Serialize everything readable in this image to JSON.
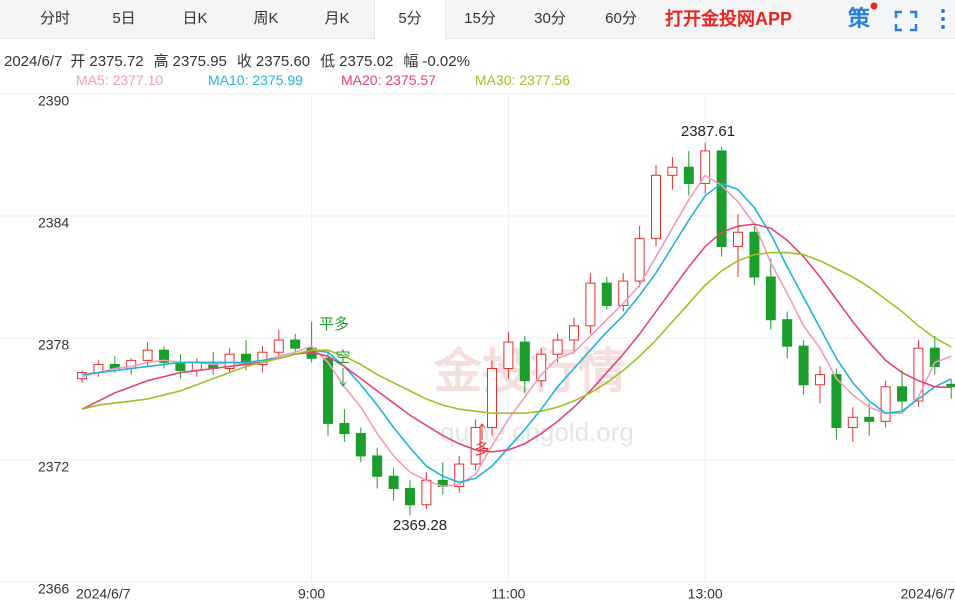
{
  "toolbar": {
    "tabs": [
      "分时",
      "5日",
      "日K",
      "周K",
      "月K",
      "5分",
      "15分",
      "30分",
      "60分"
    ],
    "active": 5,
    "app_link": "打开金投网APP",
    "strategy": "策"
  },
  "info": {
    "date": "2024/6/7",
    "items": [
      {
        "label": "开",
        "value": "2375.72"
      },
      {
        "label": "高",
        "value": "2375.95"
      },
      {
        "label": "收",
        "value": "2375.60"
      },
      {
        "label": "低",
        "value": "2375.02"
      },
      {
        "label": "幅",
        "value": "-0.02%"
      }
    ]
  },
  "chart_data": {
    "type": "candlestick",
    "categories": [
      "2024/6/7",
      null,
      null,
      null,
      null,
      null,
      null,
      null,
      null,
      null,
      null,
      null,
      null,
      null,
      "9:00",
      null,
      null,
      null,
      null,
      null,
      null,
      null,
      null,
      null,
      null,
      null,
      "11:00",
      null,
      null,
      null,
      null,
      null,
      null,
      null,
      null,
      null,
      null,
      null,
      "13:00",
      null,
      null,
      null,
      null,
      null,
      null,
      null,
      null,
      null,
      null,
      null,
      null,
      null,
      null,
      "2024/6/7"
    ],
    "open": [
      2376.0,
      2376.3,
      2376.7,
      2376.5,
      2376.9,
      2377.4,
      2376.8,
      2376.4,
      2376.8,
      2376.5,
      2377.2,
      2376.7,
      2377.3,
      2377.9,
      2377.5,
      2377.0,
      2373.8,
      2373.3,
      2372.2,
      2371.2,
      2370.6,
      2369.8,
      2371.0,
      2370.7,
      2371.8,
      2373.6,
      2376.5,
      2377.8,
      2375.9,
      2377.2,
      2377.9,
      2378.6,
      2380.7,
      2379.6,
      2380.8,
      2382.9,
      2386.0,
      2386.4,
      2385.6,
      2387.2,
      2382.5,
      2383.2,
      2381.0,
      2378.9,
      2377.6,
      2375.7,
      2376.2,
      2373.6,
      2374.1,
      2373.9,
      2375.6,
      2374.9,
      2377.5,
      2375.72
    ],
    "high": [
      2376.4,
      2376.9,
      2377.1,
      2377.0,
      2377.8,
      2377.6,
      2377.2,
      2377.0,
      2377.3,
      2377.5,
      2377.9,
      2377.6,
      2378.4,
      2378.2,
      2378.8,
      2377.3,
      2374.5,
      2373.6,
      2372.6,
      2371.6,
      2371.0,
      2371.4,
      2371.9,
      2372.2,
      2374.0,
      2376.9,
      2378.3,
      2378.1,
      2377.5,
      2378.2,
      2379.0,
      2381.2,
      2381.0,
      2381.2,
      2383.5,
      2386.5,
      2386.9,
      2387.2,
      2387.61,
      2387.4,
      2384.1,
      2383.6,
      2381.9,
      2379.3,
      2377.9,
      2376.6,
      2376.5,
      2374.6,
      2374.8,
      2375.9,
      2376.4,
      2377.9,
      2378.1,
      2375.95
    ],
    "low": [
      2375.8,
      2376.1,
      2376.3,
      2376.2,
      2376.6,
      2376.5,
      2376.0,
      2376.1,
      2376.2,
      2376.3,
      2376.4,
      2376.3,
      2377.0,
      2377.2,
      2376.8,
      2373.2,
      2372.9,
      2371.9,
      2370.6,
      2370.0,
      2369.28,
      2369.6,
      2370.3,
      2370.4,
      2371.5,
      2373.2,
      2376.0,
      2375.3,
      2375.6,
      2376.8,
      2377.3,
      2378.2,
      2379.4,
      2379.3,
      2380.5,
      2382.5,
      2385.3,
      2385.0,
      2385.1,
      2382.0,
      2381.0,
      2380.6,
      2378.4,
      2377.0,
      2375.2,
      2374.8,
      2373.0,
      2372.9,
      2373.2,
      2373.6,
      2374.4,
      2374.6,
      2376.2,
      2375.02
    ],
    "close": [
      2376.3,
      2376.7,
      2376.5,
      2376.9,
      2377.4,
      2376.8,
      2376.4,
      2376.8,
      2376.5,
      2377.2,
      2376.7,
      2377.3,
      2377.9,
      2377.5,
      2377.0,
      2373.8,
      2373.3,
      2372.2,
      2371.2,
      2370.6,
      2369.8,
      2371.0,
      2370.7,
      2371.8,
      2373.6,
      2376.5,
      2377.8,
      2375.9,
      2377.2,
      2377.9,
      2378.6,
      2380.7,
      2379.6,
      2380.8,
      2382.9,
      2386.0,
      2386.4,
      2385.6,
      2387.2,
      2382.5,
      2383.2,
      2381.0,
      2378.9,
      2377.6,
      2375.7,
      2376.2,
      2373.6,
      2374.1,
      2373.9,
      2375.6,
      2374.9,
      2377.5,
      2376.6,
      2375.6
    ],
    "up_color": "#e8302f",
    "down_color": "#1b9e2b",
    "series": [
      {
        "name": "MA5: 2377.10",
        "color": "#f29bbd",
        "values": [
          2376.1,
          2376.3,
          2376.5,
          2376.6,
          2376.8,
          2376.9,
          2376.8,
          2376.8,
          2376.7,
          2376.8,
          2376.7,
          2376.9,
          2377.1,
          2377.3,
          2377.6,
          2376.8,
          2375.6,
          2374.6,
          2373.3,
          2372.2,
          2371.4,
          2371.0,
          2370.7,
          2370.8,
          2371.3,
          2372.7,
          2374.0,
          2375.1,
          2376.2,
          2377.0,
          2377.3,
          2378.1,
          2378.9,
          2379.7,
          2380.6,
          2382.0,
          2383.4,
          2384.8,
          2386.0,
          2385.5,
          2384.7,
          2383.6,
          2381.7,
          2380.2,
          2378.6,
          2377.5,
          2376.0,
          2375.2,
          2374.6,
          2374.3,
          2374.3,
          2375.1,
          2376.8,
          2377.1
        ]
      },
      {
        "name": "MA10: 2375.99",
        "color": "#1fb6d6",
        "values": [
          2376.2,
          2376.3,
          2376.4,
          2376.5,
          2376.6,
          2376.7,
          2376.8,
          2376.8,
          2376.8,
          2376.8,
          2376.8,
          2376.9,
          2377.0,
          2377.2,
          2377.4,
          2377.3,
          2376.6,
          2375.7,
          2374.7,
          2373.6,
          2372.6,
          2371.7,
          2371.2,
          2370.9,
          2371.1,
          2371.7,
          2372.6,
          2373.5,
          2374.5,
          2375.6,
          2376.5,
          2377.4,
          2378.3,
          2379.1,
          2380.1,
          2381.2,
          2382.5,
          2383.8,
          2385.0,
          2385.6,
          2385.3,
          2384.4,
          2383.1,
          2381.5,
          2380.0,
          2378.5,
          2377.0,
          2375.8,
          2374.9,
          2374.3,
          2374.4,
          2375.0,
          2375.6,
          2375.99
        ]
      },
      {
        "name": "MA20: 2375.57",
        "color": "#e0457a",
        "values": [
          2374.5,
          2374.9,
          2375.3,
          2375.6,
          2375.9,
          2376.1,
          2376.3,
          2376.4,
          2376.5,
          2376.6,
          2376.7,
          2376.8,
          2377.0,
          2377.2,
          2377.3,
          2377.1,
          2376.6,
          2376.0,
          2375.4,
          2374.8,
          2374.2,
          2373.7,
          2373.2,
          2372.8,
          2372.5,
          2372.4,
          2372.5,
          2372.8,
          2373.3,
          2373.9,
          2374.6,
          2375.4,
          2376.3,
          2377.2,
          2378.2,
          2379.3,
          2380.4,
          2381.5,
          2382.5,
          2383.2,
          2383.5,
          2383.6,
          2383.4,
          2382.8,
          2382.0,
          2381.0,
          2379.9,
          2378.8,
          2377.8,
          2376.9,
          2376.3,
          2375.9,
          2375.6,
          2375.57
        ]
      },
      {
        "name": "MA30: 2377.56",
        "color": "#9fc124",
        "values": [
          2374.5,
          2374.7,
          2374.8,
          2374.9,
          2375.0,
          2375.2,
          2375.4,
          2375.7,
          2376.0,
          2376.3,
          2376.6,
          2376.8,
          2377.0,
          2377.2,
          2377.4,
          2377.4,
          2377.1,
          2376.7,
          2376.2,
          2375.8,
          2375.4,
          2375.0,
          2374.7,
          2374.5,
          2374.4,
          2374.3,
          2374.3,
          2374.3,
          2374.4,
          2374.6,
          2374.9,
          2375.3,
          2375.8,
          2376.4,
          2377.1,
          2377.9,
          2378.8,
          2379.7,
          2380.6,
          2381.3,
          2381.8,
          2382.1,
          2382.2,
          2382.2,
          2382.1,
          2381.8,
          2381.4,
          2381.0,
          2380.5,
          2379.9,
          2379.3,
          2378.6,
          2378.0,
          2377.56
        ]
      }
    ],
    "ylim": [
      2366,
      2390
    ],
    "yticks": [
      2366,
      2372,
      2378,
      2384,
      2390
    ],
    "grid": true,
    "annotations": [
      "2387.61",
      "2369.28",
      "平多",
      "空",
      "多"
    ],
    "watermark": [
      "金投行情",
      "quote.cngold.org"
    ]
  }
}
